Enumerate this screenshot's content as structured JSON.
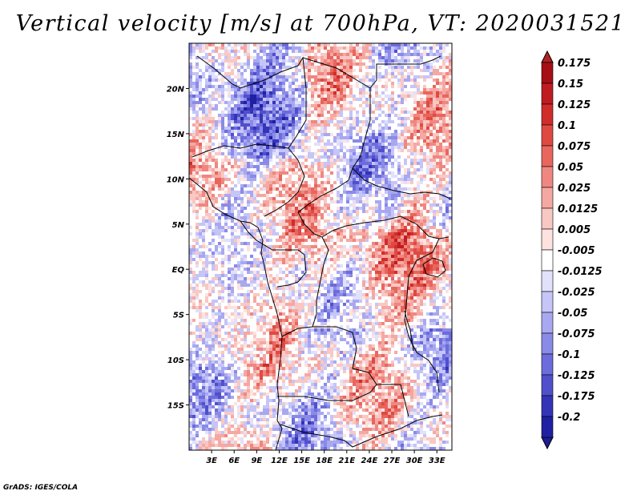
{
  "title": "Vertical velocity [m/s] at 700hPa, VT: 2020031521",
  "credit": "GrADS: IGES/COLA",
  "map": {
    "lon_range": [
      0,
      35
    ],
    "lat_range": [
      -20,
      25
    ],
    "lon_ticks": [
      {
        "value": 3,
        "label": "3E"
      },
      {
        "value": 6,
        "label": "6E"
      },
      {
        "value": 9,
        "label": "9E"
      },
      {
        "value": 12,
        "label": "12E"
      },
      {
        "value": 15,
        "label": "15E"
      },
      {
        "value": 18,
        "label": "18E"
      },
      {
        "value": 21,
        "label": "21E"
      },
      {
        "value": 24,
        "label": "24E"
      },
      {
        "value": 27,
        "label": "27E"
      },
      {
        "value": 30,
        "label": "30E"
      },
      {
        "value": 33,
        "label": "33E"
      }
    ],
    "lat_ticks": [
      {
        "value": 20,
        "label": "20N"
      },
      {
        "value": 15,
        "label": "15N"
      },
      {
        "value": 10,
        "label": "10N"
      },
      {
        "value": 5,
        "label": "5N"
      },
      {
        "value": 0,
        "label": "EQ"
      },
      {
        "value": -5,
        "label": "5S"
      },
      {
        "value": -10,
        "label": "10S"
      },
      {
        "value": -15,
        "label": "15S"
      }
    ]
  },
  "colorbar": {
    "levels": [
      {
        "label": "0.175",
        "color": "#a50f15"
      },
      {
        "label": "0.15",
        "color": "#bf1c21"
      },
      {
        "label": "0.125",
        "color": "#d02d2a"
      },
      {
        "label": "0.1",
        "color": "#de4a42"
      },
      {
        "label": "0.075",
        "color": "#e8665e"
      },
      {
        "label": "0.05",
        "color": "#ef8780"
      },
      {
        "label": "0.025",
        "color": "#f5a8a2"
      },
      {
        "label": "0.0125",
        "color": "#f9c8c3"
      },
      {
        "label": "0.005",
        "color": "#fde2df"
      },
      {
        "label": "-0.005",
        "color": "#ffffff"
      },
      {
        "label": "-0.0125",
        "color": "#e1e1fc"
      },
      {
        "label": "-0.025",
        "color": "#c5c5f8"
      },
      {
        "label": "-0.05",
        "color": "#a8a8f1"
      },
      {
        "label": "-0.075",
        "color": "#8a8ae8"
      },
      {
        "label": "-0.1",
        "color": "#6c6cdc"
      },
      {
        "label": "-0.125",
        "color": "#5050cc"
      },
      {
        "label": "-0.175",
        "color": "#3434b8"
      },
      {
        "label": "-0.2",
        "color": "#2020a2"
      }
    ],
    "above_color": "#b22222",
    "below_color": "#1d1d96"
  }
}
